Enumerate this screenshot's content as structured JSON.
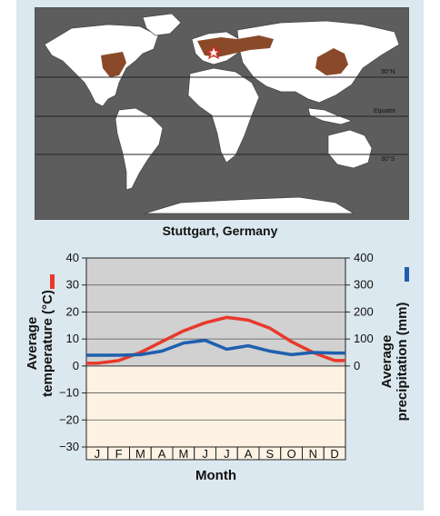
{
  "map": {
    "lat_labels": [
      "30°N",
      "Equator",
      "30°S"
    ]
  },
  "chart_data": {
    "type": "line",
    "title": "Stuttgart, Germany",
    "xlabel": "Month",
    "categories": [
      "J",
      "F",
      "M",
      "A",
      "M",
      "J",
      "J",
      "A",
      "S",
      "O",
      "N",
      "D"
    ],
    "y_left": {
      "label": "Average temperature (°C)",
      "range": [
        -30,
        40
      ],
      "ticks": [
        -30,
        -20,
        -10,
        0,
        10,
        20,
        30,
        40
      ]
    },
    "y_right": {
      "label": "Average precipitation (mm)",
      "range": [
        0,
        400
      ],
      "ticks": [
        0,
        100,
        200,
        300,
        400
      ]
    },
    "series": [
      {
        "name": "Average temperature (°C)",
        "axis": "left",
        "color": "#e8392b",
        "values": [
          1,
          2,
          5,
          9,
          13,
          16,
          18,
          17,
          14,
          9,
          5,
          2
        ]
      },
      {
        "name": "Average precipitation (mm)",
        "axis": "right",
        "color": "#1f5fae",
        "values": [
          40,
          40,
          42,
          55,
          85,
          95,
          62,
          75,
          55,
          42,
          50,
          48
        ]
      }
    ],
    "colors": {
      "above_zero_bg": "#d1d1d1",
      "below_zero_bg": "#fdf2e3",
      "map_land": "#ffffff",
      "map_ocean": "#5d5d5d",
      "biome": "#8a4a2a"
    }
  }
}
